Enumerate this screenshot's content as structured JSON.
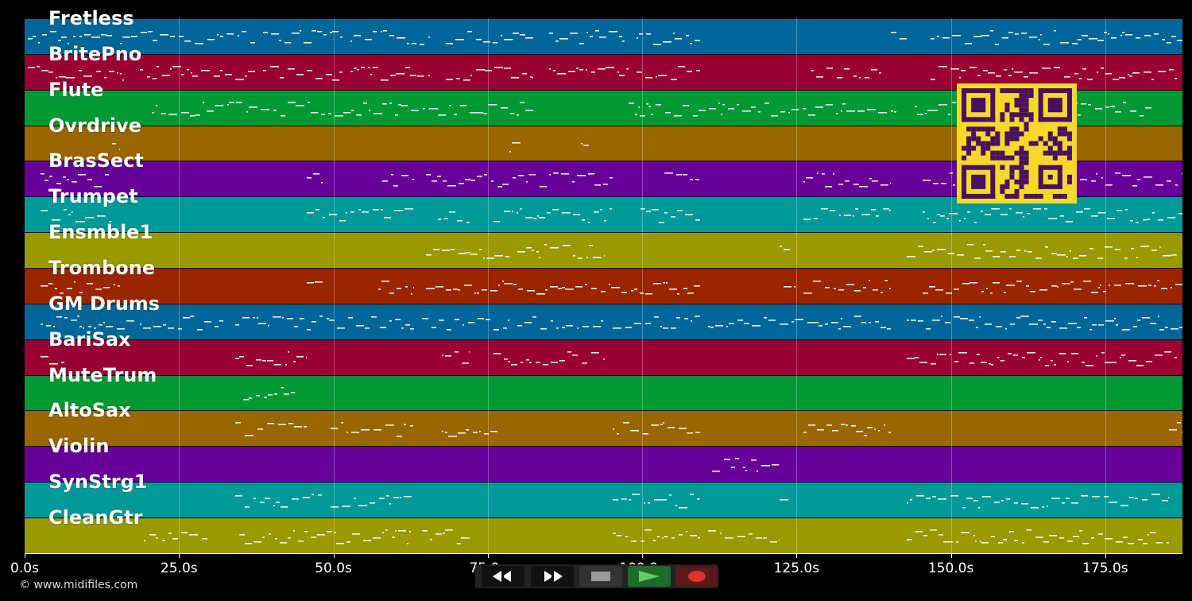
{
  "app": {
    "copyright": "© www.midifiles.com"
  },
  "tracks": [
    {
      "name": "Fretless",
      "color": "#006699"
    },
    {
      "name": "BritePno",
      "color": "#990033"
    },
    {
      "name": "Flute",
      "color": "#009933"
    },
    {
      "name": "Ovrdrive",
      "color": "#996600"
    },
    {
      "name": "BrasSect",
      "color": "#660099"
    },
    {
      "name": "Trumpet",
      "color": "#009999"
    },
    {
      "name": "Ensmble1",
      "color": "#999900"
    },
    {
      "name": "Trombone",
      "color": "#992600"
    },
    {
      "name": "GM Drums",
      "color": "#006699"
    },
    {
      "name": "BariSax",
      "color": "#990033"
    },
    {
      "name": "MuteTrum",
      "color": "#009933"
    },
    {
      "name": "AltoSax",
      "color": "#996600"
    },
    {
      "name": "Violin",
      "color": "#660099"
    },
    {
      "name": "SynStrg1",
      "color": "#009999"
    },
    {
      "name": "CleanGtr",
      "color": "#999900"
    }
  ],
  "timeline": {
    "max_seconds": 187.5,
    "ticks": [
      "0.0s",
      "25.0s",
      "50.0s",
      "75.0s",
      "100.0s",
      "125.0s",
      "150.0s",
      "175.0s"
    ],
    "tick_values": [
      0,
      25,
      50,
      75,
      100,
      125,
      150,
      175
    ]
  },
  "transport": {
    "rewind_icon": "rewind-icon",
    "fastforward_icon": "fast-forward-icon",
    "stop_icon": "stop-icon",
    "play_icon": "play-icon",
    "record_icon": "record-icon",
    "play_color": "#66cc66",
    "record_color": "#dd3333"
  },
  "qr": {
    "color": "#f5d92a",
    "module_color": "#4a1060"
  },
  "activity": [
    [
      [
        4,
        110
      ],
      [
        120,
        290
      ],
      [
        300,
        400
      ],
      [
        410,
        510
      ],
      [
        530,
        640
      ],
      [
        660,
        760
      ],
      [
        770,
        850
      ],
      [
        1090,
        1110
      ],
      [
        1140,
        1470
      ]
    ],
    [
      [
        4,
        125
      ],
      [
        145,
        290
      ],
      [
        300,
        400
      ],
      [
        410,
        510
      ],
      [
        530,
        640
      ],
      [
        660,
        760
      ],
      [
        770,
        850
      ],
      [
        990,
        1080
      ],
      [
        1140,
        1450
      ]
    ],
    [
      [
        160,
        640
      ],
      [
        760,
        1100
      ],
      [
        1120,
        1420
      ]
    ],
    [
      [
        110,
        120
      ],
      [
        610,
        625
      ],
      [
        700,
        710
      ]
    ],
    [
      [
        20,
        110
      ],
      [
        355,
        375
      ],
      [
        450,
        490
      ],
      [
        505,
        740
      ],
      [
        805,
        850
      ],
      [
        980,
        1090
      ],
      [
        1130,
        1470
      ]
    ],
    [
      [
        20,
        110
      ],
      [
        355,
        490
      ],
      [
        520,
        560
      ],
      [
        590,
        740
      ],
      [
        775,
        850
      ],
      [
        980,
        1090
      ],
      [
        1130,
        1470
      ]
    ],
    [
      [
        505,
        610
      ],
      [
        620,
        730
      ],
      [
        950,
        965
      ],
      [
        1110,
        1450
      ]
    ],
    [
      [
        20,
        120
      ],
      [
        355,
        375
      ],
      [
        445,
        490
      ],
      [
        505,
        850
      ],
      [
        955,
        970
      ],
      [
        980,
        1090
      ],
      [
        1130,
        1470
      ]
    ],
    [
      [
        20,
        140
      ],
      [
        145,
        250
      ],
      [
        265,
        375
      ],
      [
        380,
        490
      ],
      [
        500,
        610
      ],
      [
        620,
        730
      ],
      [
        740,
        850
      ],
      [
        860,
        1090
      ],
      [
        1110,
        1470
      ]
    ],
    [
      [
        20,
        50
      ],
      [
        265,
        355
      ],
      [
        525,
        560
      ],
      [
        590,
        730
      ],
      [
        1110,
        1450
      ]
    ],
    [
      [
        275,
        340
      ]
    ],
    [
      [
        265,
        355
      ],
      [
        385,
        490
      ],
      [
        525,
        595
      ],
      [
        740,
        850
      ],
      [
        980,
        1090
      ],
      [
        1440,
        1460
      ]
    ],
    [
      [
        865,
        950
      ]
    ],
    [
      [
        265,
        375
      ],
      [
        385,
        490
      ],
      [
        740,
        850
      ],
      [
        950,
        965
      ],
      [
        1110,
        1440
      ]
    ],
    [
      [
        150,
        230
      ],
      [
        270,
        490
      ],
      [
        500,
        560
      ],
      [
        740,
        850
      ],
      [
        860,
        950
      ],
      [
        1110,
        1440
      ]
    ]
  ]
}
